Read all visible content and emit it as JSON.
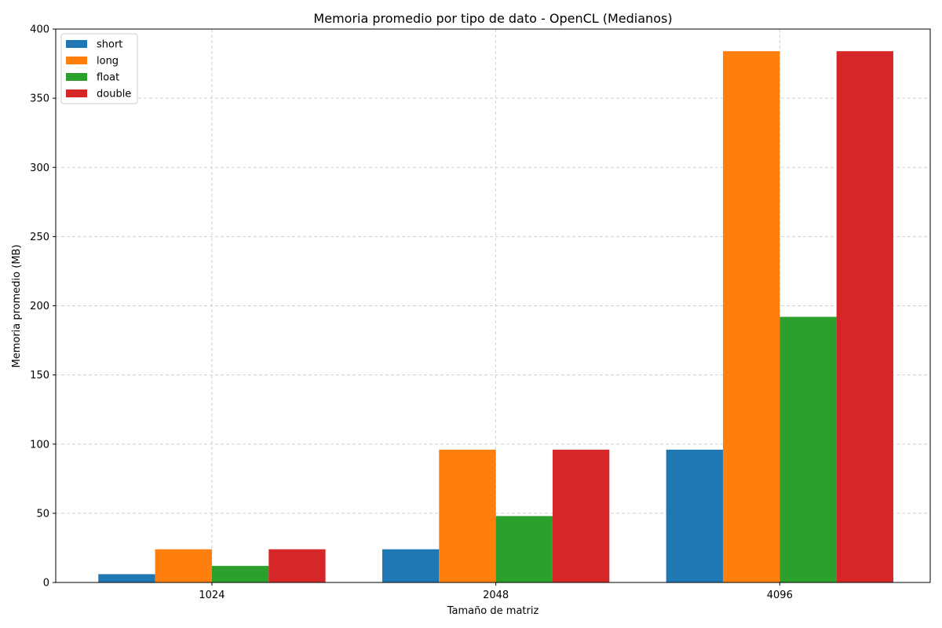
{
  "chart_data": {
    "type": "bar",
    "title": "Memoria promedio por tipo de dato - OpenCL (Medianos)",
    "xlabel": "Tamaño de matriz",
    "ylabel": "Memoria promedio (MB)",
    "categories": [
      "1024",
      "2048",
      "4096"
    ],
    "ylim": [
      0,
      400
    ],
    "yticks": [
      0,
      50,
      100,
      150,
      200,
      250,
      300,
      350,
      400
    ],
    "grid": true,
    "legend_position": "top-left",
    "series": [
      {
        "name": "short",
        "color": "#1f77b4",
        "values": [
          6,
          24,
          96
        ]
      },
      {
        "name": "long",
        "color": "#ff7f0e",
        "values": [
          24,
          96,
          384
        ]
      },
      {
        "name": "float",
        "color": "#2ca02c",
        "values": [
          12,
          48,
          192
        ]
      },
      {
        "name": "double",
        "color": "#d62728",
        "values": [
          24,
          96,
          384
        ]
      }
    ]
  }
}
